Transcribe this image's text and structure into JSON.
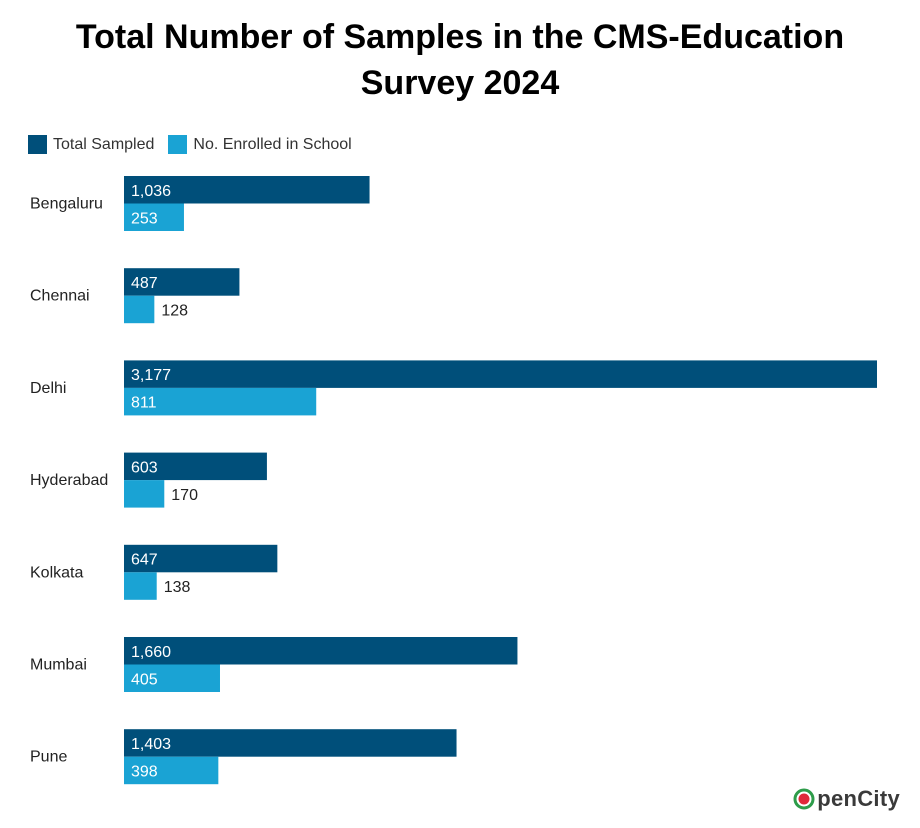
{
  "chart_data": {
    "type": "bar",
    "orientation": "horizontal",
    "title_line1": "Total Number of Samples in the CMS-Education",
    "title_line2": "Survey 2024",
    "categories": [
      "Bengaluru",
      "Chennai",
      "Delhi",
      "Hyderabad",
      "Kolkata",
      "Mumbai",
      "Pune"
    ],
    "series": [
      {
        "name": "Total Sampled",
        "color": "#004f7a",
        "values": [
          1036,
          487,
          3177,
          603,
          647,
          1660,
          1403
        ],
        "labels": [
          "1,036",
          "487",
          "3,177",
          "603",
          "647",
          "1,660",
          "1,403"
        ]
      },
      {
        "name": "No. Enrolled in School",
        "color": "#1aa3d4",
        "values": [
          253,
          128,
          811,
          170,
          138,
          405,
          398
        ],
        "labels": [
          "253",
          "128",
          "811",
          "170",
          "138",
          "405",
          "398"
        ]
      }
    ],
    "xlim": [
      0,
      3177
    ],
    "grid": false,
    "legend_position": "top-left"
  },
  "logo": {
    "text": "penCity",
    "icon": "opencity-logo-icon"
  }
}
